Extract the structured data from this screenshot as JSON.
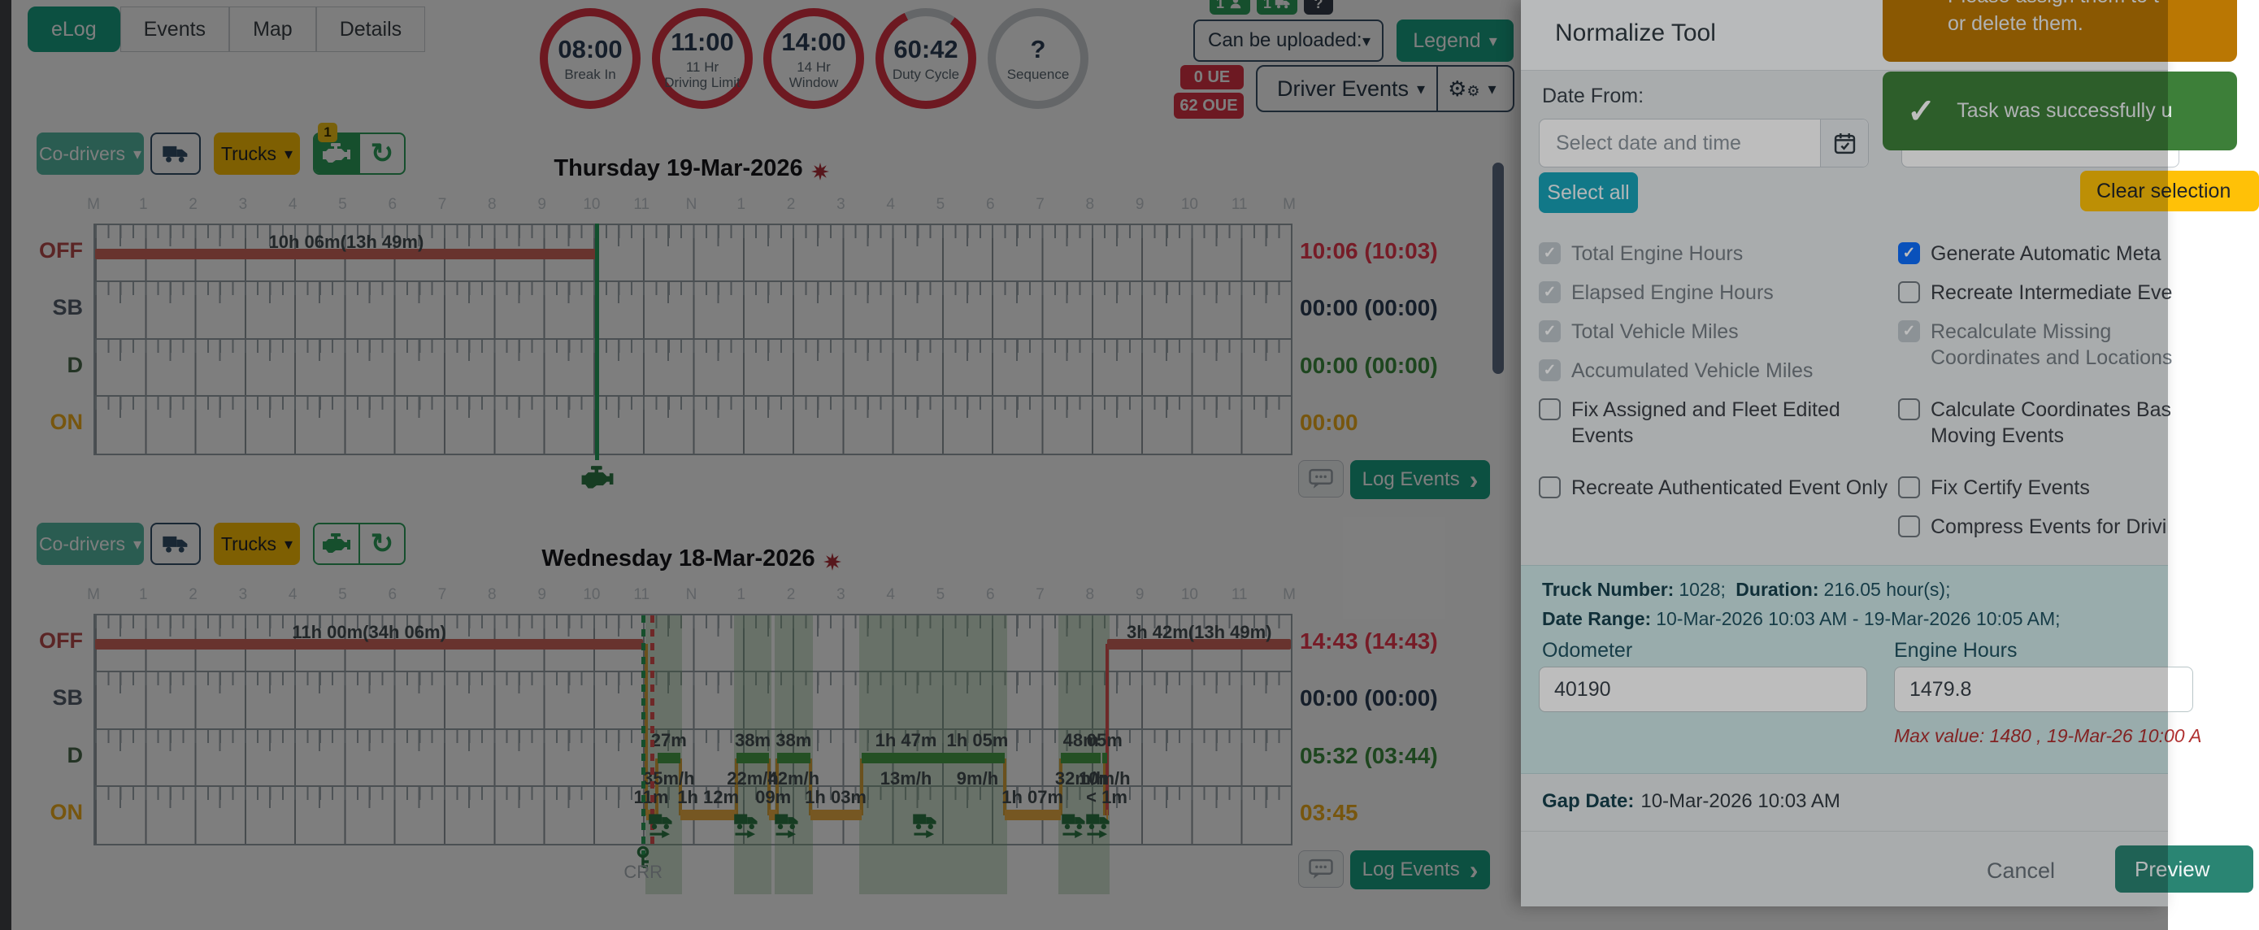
{
  "tabs": [
    {
      "label": "eLog",
      "active": true
    },
    {
      "label": "Events",
      "active": false
    },
    {
      "label": "Map",
      "active": false
    },
    {
      "label": "Details",
      "active": false
    }
  ],
  "gauges": [
    {
      "value": "08:00",
      "label": "Break In",
      "ring": "full"
    },
    {
      "value": "11:00",
      "label": "11 Hr Driving Limit",
      "ring": "full"
    },
    {
      "value": "14:00",
      "label": "14 Hr Window",
      "ring": "full"
    },
    {
      "value": "60:42",
      "label": "Duty Cycle",
      "ring": "partial"
    },
    {
      "value": "?",
      "label": "Sequence",
      "ring": "empty"
    }
  ],
  "top_right": {
    "mini_badges": [
      {
        "text": "1",
        "icon": "driver"
      },
      {
        "text": "1",
        "icon": "truck"
      },
      {
        "text": "?",
        "icon": "question"
      }
    ],
    "can_be_uploaded": "Can be uploaded:",
    "legend": "Legend",
    "ue_badge": "0 UE",
    "oue_badge": "62 OUE",
    "driver_events": "Driver Events"
  },
  "controls": {
    "co_drivers": "Co-drivers",
    "trucks": "Trucks"
  },
  "row_labels": [
    "OFF",
    "SB",
    "D",
    "ON"
  ],
  "hour_labels": [
    "M",
    "1",
    "2",
    "3",
    "4",
    "5",
    "6",
    "7",
    "8",
    "9",
    "10",
    "11",
    "N",
    "1",
    "2",
    "3",
    "4",
    "5",
    "6",
    "7",
    "8",
    "9",
    "10",
    "11",
    "M"
  ],
  "log_events_label": "Log Events",
  "chart_colors": {
    "off_bar": "#d2685f",
    "d_bar": "#4aa34a",
    "on_bar": "#edb045",
    "connector": "#d9a43c",
    "connector_red": "#e05252",
    "current_line": "#26a35f",
    "dashed_green": "#2ca05a",
    "dashed_red": "#e05252"
  },
  "days": [
    {
      "title": "Thursday 19-Mar-2026",
      "engine_badge": "1",
      "totals": [
        "10:06 (10:03)",
        "00:00 (00:00)",
        "00:00 (00:00)",
        "00:00"
      ],
      "chart": {
        "off_segments": [
          {
            "start": 0,
            "end": 10.08,
            "label": "10h 06m(13h 49m)"
          }
        ],
        "d_segments": [],
        "on_segments": [],
        "connectors": [],
        "shading": [],
        "truck_marks": [],
        "current_time_line": 10.08
      }
    },
    {
      "title": "Wednesday 18-Mar-2026",
      "engine_badge": null,
      "totals": [
        "14:43 (14:43)",
        "00:00 (00:00)",
        "05:32 (03:44)",
        "03:45"
      ],
      "chart": {
        "off_segments": [
          {
            "start": 0,
            "end": 11.0,
            "label": "11h 00m(34h 06m)"
          },
          {
            "start": 20.32,
            "end": 24,
            "label": "3h 42m(13h 49m)"
          }
        ],
        "d_segments": [
          {
            "start": 11.29,
            "end": 11.74,
            "label": "27m",
            "speed": "35m/h"
          },
          {
            "start": 12.87,
            "end": 13.53,
            "label": "38m",
            "speed": "22m/h"
          },
          {
            "start": 13.69,
            "end": 14.35,
            "label": "38m",
            "speed": "42m/h"
          },
          {
            "start": 15.38,
            "end": 17.17,
            "label": "1h 47m",
            "speed": "13m/h"
          },
          {
            "start": 17.17,
            "end": 18.25,
            "label": "1h 05m",
            "speed": "9m/h"
          },
          {
            "start": 19.38,
            "end": 20.19,
            "label": "48m",
            "speed": "32m/h"
          },
          {
            "start": 20.21,
            "end": 20.31,
            "label": "05m",
            "speed": "10m/h"
          }
        ],
        "on_segments": [
          {
            "start": 11.07,
            "end": 11.25,
            "label": "11m"
          },
          {
            "start": 11.74,
            "end": 12.87,
            "label": "1h 12m"
          },
          {
            "start": 13.53,
            "end": 13.69,
            "label": "09m"
          },
          {
            "start": 14.35,
            "end": 15.38,
            "label": "1h 03m"
          },
          {
            "start": 18.25,
            "end": 19.38,
            "label": "1h 07m"
          },
          {
            "start": 20.29,
            "end": 20.32,
            "label": "< 1m"
          }
        ],
        "connectors": [
          {
            "x": 11.07,
            "from": 0,
            "to": 3,
            "color": "orange"
          },
          {
            "x": 11.27,
            "from": 3,
            "to": 2,
            "color": "orange"
          },
          {
            "x": 11.74,
            "from": 2,
            "to": 3,
            "color": "orange"
          },
          {
            "x": 12.87,
            "from": 3,
            "to": 2,
            "color": "orange"
          },
          {
            "x": 13.53,
            "from": 2,
            "to": 3,
            "color": "orange"
          },
          {
            "x": 13.69,
            "from": 3,
            "to": 2,
            "color": "orange"
          },
          {
            "x": 14.35,
            "from": 2,
            "to": 3,
            "color": "orange"
          },
          {
            "x": 15.38,
            "from": 3,
            "to": 2,
            "color": "orange"
          },
          {
            "x": 18.25,
            "from": 2,
            "to": 3,
            "color": "orange"
          },
          {
            "x": 19.38,
            "from": 3,
            "to": 2,
            "color": "orange"
          },
          {
            "x": 20.26,
            "from": 2,
            "to": 3,
            "color": "orange"
          },
          {
            "x": 20.32,
            "from": 0,
            "to": 3,
            "color": "red"
          }
        ],
        "shading": [
          [
            11.05,
            11.78
          ],
          [
            12.82,
            13.58
          ],
          [
            13.64,
            14.4
          ],
          [
            15.33,
            18.3
          ],
          [
            19.33,
            20.36
          ]
        ],
        "truck_marks": [
          11.34,
          13.05,
          13.87,
          16.64,
          19.62,
          20.11
        ],
        "dashed_green": 11.0,
        "dashed_red": 11.17,
        "key_label": "CRR"
      }
    }
  ],
  "panel": {
    "title": "Normalize Tool",
    "date_from_label": "Date From:",
    "date_placeholder": "Select date and time",
    "select_all": "Select all",
    "clear_selection": "Clear selection",
    "checkboxes_left": [
      {
        "label": "Total Engine Hours",
        "state": "checked-muted"
      },
      {
        "label": "Elapsed Engine Hours",
        "state": "checked-muted"
      },
      {
        "label": "Total Vehicle Miles",
        "state": "checked-muted"
      },
      {
        "label": "Accumulated Vehicle Miles",
        "state": "checked-muted"
      },
      {
        "label": "Fix Assigned and Fleet Edited Events",
        "state": "unchecked"
      },
      {
        "label": "Recreate Authenticated Event Only",
        "state": "unchecked"
      }
    ],
    "checkboxes_right": [
      {
        "label": "Generate Automatic Meta",
        "state": "checked"
      },
      {
        "label": "Recreate Intermediate Eve",
        "state": "unchecked"
      },
      {
        "label": "Recalculate Missing Coordinates and Locations",
        "state": "checked-muted"
      },
      {
        "label": "Calculate Coordinates Bas Moving Events",
        "state": "unchecked"
      },
      {
        "label": "Fix Certify Events",
        "state": "unchecked"
      },
      {
        "label": "Compress Events for Drivi",
        "state": "unchecked"
      }
    ],
    "info": {
      "truck_number_label": "Truck Number:",
      "truck_number_value": "1028;",
      "duration_label": "Duration:",
      "duration_value": "216.05 hour(s);",
      "date_range_label": "Date Range:",
      "date_range_value": "10-Mar-2026 10:03 AM - 19-Mar-2026 10:05 AM;",
      "odometer_label": "Odometer",
      "odometer_value": "40190",
      "engine_hours_label": "Engine Hours",
      "engine_hours_value": "1479.8",
      "max_note": "Max value: 1480 , 19-Mar-26 10:00 A"
    },
    "gap_label": "Gap Date:",
    "gap_value": "10-Mar-2026 10:03 AM",
    "cancel": "Cancel",
    "preview": "Preview"
  },
  "toasts": {
    "warning_line1": "Please assign them to t",
    "warning_line2": "or delete them.",
    "success_text": "Task was successfully u"
  }
}
